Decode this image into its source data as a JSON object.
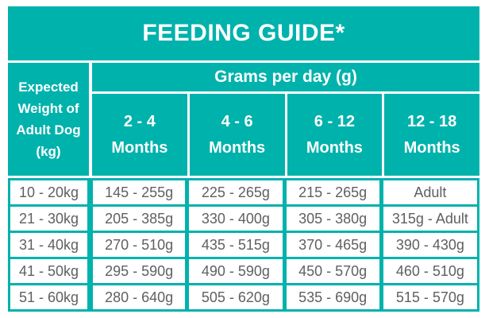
{
  "colors": {
    "teal": "#00b2ac",
    "header_text": "#ffffff",
    "cell_text": "#5f6063"
  },
  "chart_data": {
    "type": "table",
    "title": "FEEDING GUIDE*",
    "row_header_label": "Expected Weight of Adult Dog (kg)",
    "group_header": "Grams per day (g)",
    "columns": [
      "2 - 4 Months",
      "4 - 6 Months",
      "6 - 12 Months",
      "12 - 18 Months"
    ],
    "rows": [
      {
        "weight": "10 - 20kg",
        "values": [
          "145 - 255g",
          "225 - 265g",
          "215 - 265g",
          "Adult"
        ]
      },
      {
        "weight": "21 - 30kg",
        "values": [
          "205 - 385g",
          "330 - 400g",
          "305 - 380g",
          "315g - Adult"
        ]
      },
      {
        "weight": "31 - 40kg",
        "values": [
          "270 - 510g",
          "435 - 515g",
          "370 - 465g",
          "390 - 430g"
        ]
      },
      {
        "weight": "41 - 50kg",
        "values": [
          "295 - 590g",
          "490 - 590g",
          "450 - 570g",
          "460 - 510g"
        ]
      },
      {
        "weight": "51 - 60kg",
        "values": [
          "280 - 640g",
          "505 - 620g",
          "535 - 690g",
          "515 - 570g"
        ]
      }
    ]
  }
}
